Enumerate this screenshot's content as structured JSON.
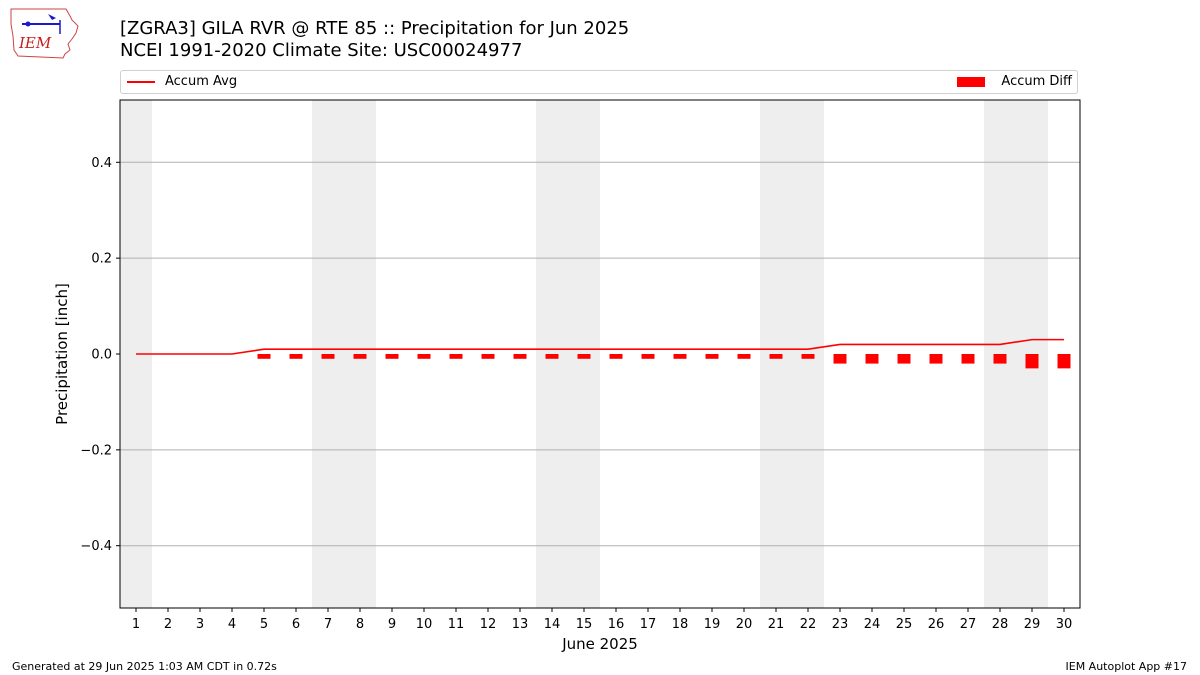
{
  "header": {
    "title_line1": "[ZGRA3] GILA RVR @ RTE 85 :: Precipitation for Jun 2025",
    "title_line2": "NCEI 1991-2020 Climate Site: USC00024977",
    "logo_text": "IEM"
  },
  "legend": {
    "line_label": "Accum Avg",
    "bar_label": "Accum Diff"
  },
  "footer": {
    "left": "Generated at 29 Jun 2025 1:03 AM CDT in 0.72s",
    "right": "IEM Autoplot App #17"
  },
  "chart_data": {
    "type": "bar",
    "xlabel": "June 2025",
    "ylabel": "Precipitation [inch]",
    "ylim": [
      -0.53,
      0.53
    ],
    "xlim": [
      0.5,
      30.5
    ],
    "yticks": [
      -0.4,
      -0.2,
      0.0,
      0.2,
      0.4
    ],
    "ytick_labels": [
      "−0.4",
      "−0.2",
      "0.0",
      "0.2",
      "0.4"
    ],
    "categories": [
      "1",
      "2",
      "3",
      "4",
      "5",
      "6",
      "7",
      "8",
      "9",
      "10",
      "11",
      "12",
      "13",
      "14",
      "15",
      "16",
      "17",
      "18",
      "19",
      "20",
      "21",
      "22",
      "23",
      "24",
      "25",
      "26",
      "27",
      "28",
      "29",
      "30"
    ],
    "grid": "horizontal",
    "weekend_shading": [
      [
        0.5,
        1.5
      ],
      [
        6.5,
        8.5
      ],
      [
        13.5,
        15.5
      ],
      [
        20.5,
        22.5
      ],
      [
        27.5,
        29.5
      ]
    ],
    "series": [
      {
        "name": "Accum Avg",
        "kind": "line",
        "color": "#ff0000",
        "values": [
          0,
          0,
          0,
          0,
          0.01,
          0.01,
          0.01,
          0.01,
          0.01,
          0.01,
          0.01,
          0.01,
          0.01,
          0.01,
          0.01,
          0.01,
          0.01,
          0.01,
          0.01,
          0.01,
          0.01,
          0.01,
          0.02,
          0.02,
          0.02,
          0.02,
          0.02,
          0.02,
          0.03,
          0.03
        ]
      },
      {
        "name": "Accum Diff",
        "kind": "bar",
        "color": "#ff0000",
        "values": [
          0,
          0,
          0,
          0,
          -0.01,
          -0.01,
          -0.01,
          -0.01,
          -0.01,
          -0.01,
          -0.01,
          -0.01,
          -0.01,
          -0.01,
          -0.01,
          -0.01,
          -0.01,
          -0.01,
          -0.01,
          -0.01,
          -0.01,
          -0.01,
          -0.02,
          -0.02,
          -0.02,
          -0.02,
          -0.02,
          -0.02,
          -0.03,
          -0.03
        ]
      }
    ]
  }
}
